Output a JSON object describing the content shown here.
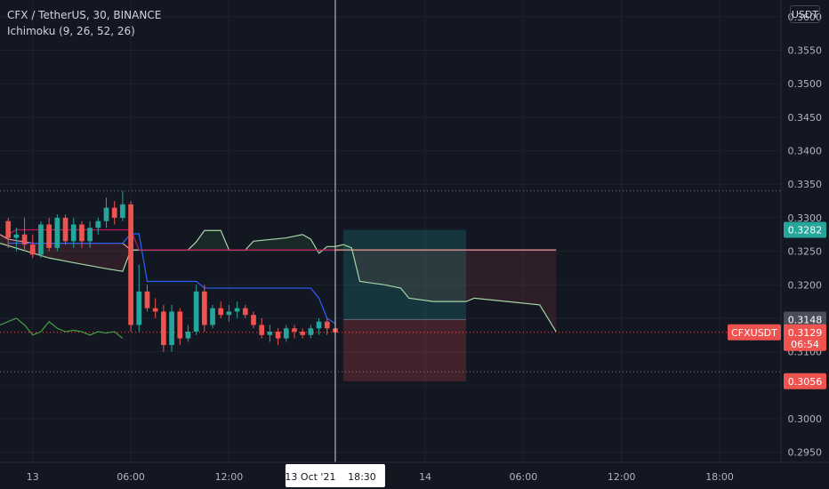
{
  "legend": {
    "symbol_line": "CFX / TetherUS, 30, BINANCE",
    "indicator_line": "Ichimoku (9, 26, 52, 26)"
  },
  "axis": {
    "currency_button": "USDT"
  },
  "colors": {
    "background": "#131722",
    "up": "#26a69a",
    "down": "#ef5350",
    "tenkan": "#2962ff",
    "kijun": "#c2185b",
    "span_a": "#a5d6a7",
    "span_b": "#ef9a9a",
    "chikou": "#43a047",
    "axis_text": "#b2b5be"
  },
  "chart_data": {
    "type": "candlestick",
    "symbol": "CFXUSDT",
    "y_ticks": [
      "0.3600",
      "0.3550",
      "0.3500",
      "0.3450",
      "0.3400",
      "0.3350",
      "0.3300",
      "0.3250",
      "0.3200",
      "0.3150",
      "0.3100",
      "0.3050",
      "0.3000",
      "0.2950"
    ],
    "ylim": [
      0.2935,
      0.3625
    ],
    "x_ticks": [
      {
        "label": "13",
        "x": 0
      },
      {
        "label": "06:00",
        "x": 12
      },
      {
        "label": "12:00",
        "x": 24
      },
      {
        "label": "14",
        "x": 48
      },
      {
        "label": "06:00",
        "x": 60
      },
      {
        "label": "12:00",
        "x": 72
      },
      {
        "label": "18:00",
        "x": 84
      }
    ],
    "x_range": [
      -4,
      91.5
    ],
    "crosshair": {
      "x": 37,
      "label_date": "13 Oct '21",
      "label_time": "18:30"
    },
    "candles": [
      [
        -3,
        0.3295,
        0.33,
        0.3255,
        0.327
      ],
      [
        -2,
        0.327,
        0.3285,
        0.325,
        0.3275
      ],
      [
        -1,
        0.3275,
        0.33,
        0.325,
        0.326
      ],
      [
        0,
        0.326,
        0.3275,
        0.324,
        0.3245
      ],
      [
        1,
        0.3245,
        0.3295,
        0.324,
        0.329
      ],
      [
        2,
        0.329,
        0.33,
        0.325,
        0.3255
      ],
      [
        3,
        0.3255,
        0.3305,
        0.325,
        0.33
      ],
      [
        4,
        0.33,
        0.3305,
        0.326,
        0.3265
      ],
      [
        5,
        0.3265,
        0.33,
        0.3255,
        0.329
      ],
      [
        6,
        0.329,
        0.3295,
        0.3255,
        0.3265
      ],
      [
        7,
        0.3265,
        0.3295,
        0.3255,
        0.3285
      ],
      [
        8,
        0.3285,
        0.33,
        0.3275,
        0.3295
      ],
      [
        9,
        0.3295,
        0.333,
        0.3285,
        0.3315
      ],
      [
        10,
        0.3315,
        0.3325,
        0.329,
        0.33
      ],
      [
        11,
        0.33,
        0.334,
        0.3295,
        0.332
      ],
      [
        12,
        0.332,
        0.3325,
        0.313,
        0.314
      ],
      [
        13,
        0.314,
        0.323,
        0.313,
        0.319
      ],
      [
        14,
        0.319,
        0.32,
        0.316,
        0.3165
      ],
      [
        15,
        0.3165,
        0.318,
        0.315,
        0.316
      ],
      [
        16,
        0.316,
        0.317,
        0.31,
        0.311
      ],
      [
        17,
        0.311,
        0.317,
        0.31,
        0.316
      ],
      [
        18,
        0.316,
        0.3165,
        0.311,
        0.312
      ],
      [
        19,
        0.312,
        0.314,
        0.3115,
        0.313
      ],
      [
        20,
        0.313,
        0.32,
        0.3125,
        0.319
      ],
      [
        21,
        0.319,
        0.32,
        0.313,
        0.314
      ],
      [
        22,
        0.314,
        0.317,
        0.3135,
        0.3165
      ],
      [
        23,
        0.3165,
        0.3175,
        0.315,
        0.3155
      ],
      [
        24,
        0.3155,
        0.317,
        0.3145,
        0.316
      ],
      [
        25,
        0.316,
        0.3175,
        0.315,
        0.3165
      ],
      [
        26,
        0.3165,
        0.317,
        0.315,
        0.3155
      ],
      [
        27,
        0.3155,
        0.316,
        0.3135,
        0.314
      ],
      [
        28,
        0.314,
        0.315,
        0.312,
        0.3125
      ],
      [
        29,
        0.3125,
        0.314,
        0.3115,
        0.313
      ],
      [
        30,
        0.313,
        0.3135,
        0.311,
        0.312
      ],
      [
        31,
        0.312,
        0.314,
        0.3115,
        0.3135
      ],
      [
        32,
        0.3135,
        0.314,
        0.312,
        0.313
      ],
      [
        33,
        0.313,
        0.3135,
        0.312,
        0.3125
      ],
      [
        34,
        0.3125,
        0.314,
        0.312,
        0.3135
      ],
      [
        35,
        0.3135,
        0.315,
        0.3125,
        0.3145
      ],
      [
        36,
        0.3145,
        0.315,
        0.3125,
        0.3135
      ],
      [
        37,
        0.3135,
        0.3145,
        0.3125,
        0.3129
      ]
    ],
    "ichimoku": {
      "tenkan": [
        [
          -3,
          0.3262
        ],
        [
          11,
          0.3262
        ],
        [
          12,
          0.3276
        ],
        [
          13,
          0.3276
        ],
        [
          14,
          0.3205
        ],
        [
          20,
          0.3205
        ],
        [
          21,
          0.3195
        ],
        [
          34,
          0.3195
        ],
        [
          35,
          0.318
        ],
        [
          36,
          0.315
        ],
        [
          37,
          0.3142
        ]
      ],
      "kijun": [
        [
          -3,
          0.3275
        ],
        [
          -2,
          0.3282
        ],
        [
          12,
          0.3282
        ],
        [
          13,
          0.3252
        ],
        [
          37,
          0.3252
        ]
      ],
      "span_a": [
        [
          -4,
          0.3262
        ],
        [
          2,
          0.324
        ],
        [
          5,
          0.3233
        ],
        [
          9,
          0.3224
        ],
        [
          11,
          0.322
        ],
        [
          12,
          0.3252
        ],
        [
          19,
          0.3252
        ],
        [
          20,
          0.3264
        ],
        [
          21,
          0.3281
        ],
        [
          23,
          0.3281
        ],
        [
          24,
          0.3252
        ],
        [
          26,
          0.3252
        ],
        [
          27,
          0.3265
        ],
        [
          31,
          0.327
        ],
        [
          33,
          0.3275
        ],
        [
          34,
          0.3268
        ],
        [
          35,
          0.3247
        ],
        [
          36,
          0.3257
        ],
        [
          37,
          0.3257
        ],
        [
          38,
          0.326
        ],
        [
          39,
          0.3255
        ],
        [
          40,
          0.3205
        ],
        [
          43,
          0.32
        ],
        [
          45,
          0.3195
        ],
        [
          46,
          0.318
        ],
        [
          49,
          0.3175
        ],
        [
          53,
          0.3175
        ],
        [
          54,
          0.318
        ],
        [
          58,
          0.3175
        ],
        [
          62,
          0.317
        ],
        [
          63,
          0.315
        ],
        [
          64,
          0.313
        ]
      ],
      "span_b": [
        [
          -4,
          0.3275
        ],
        [
          -3,
          0.3268
        ],
        [
          0,
          0.3262
        ],
        [
          11,
          0.3262
        ],
        [
          12,
          0.3252
        ],
        [
          64,
          0.3252
        ]
      ],
      "chikou": [
        [
          -4,
          0.314
        ],
        [
          -3,
          0.3145
        ],
        [
          -2,
          0.315
        ],
        [
          -1,
          0.314
        ],
        [
          0,
          0.3125
        ],
        [
          1,
          0.313
        ],
        [
          2,
          0.3145
        ],
        [
          3,
          0.3135
        ],
        [
          4,
          0.313
        ],
        [
          5,
          0.3132
        ],
        [
          6,
          0.313
        ],
        [
          7,
          0.3125
        ],
        [
          8,
          0.313
        ],
        [
          9,
          0.3128
        ],
        [
          10,
          0.313
        ],
        [
          11,
          0.312
        ]
      ]
    },
    "position": {
      "x_start": 38,
      "x_end": 53,
      "entry": 0.3148,
      "target": 0.3282,
      "stop": 0.3056
    },
    "levels": [
      0.334,
      0.307
    ],
    "price_labels": [
      {
        "value": 0.3282,
        "label": "0.3282",
        "color": "#26a69a"
      },
      {
        "value": 0.3148,
        "label": "0.3148",
        "color": "#4a4e5a"
      },
      {
        "value": 0.3056,
        "label": "0.3056",
        "color": "#ef5350"
      }
    ],
    "last_price": {
      "value": 0.3129,
      "label": "0.3129",
      "symbol": "CFXUSDT",
      "countdown": "06:54"
    }
  }
}
